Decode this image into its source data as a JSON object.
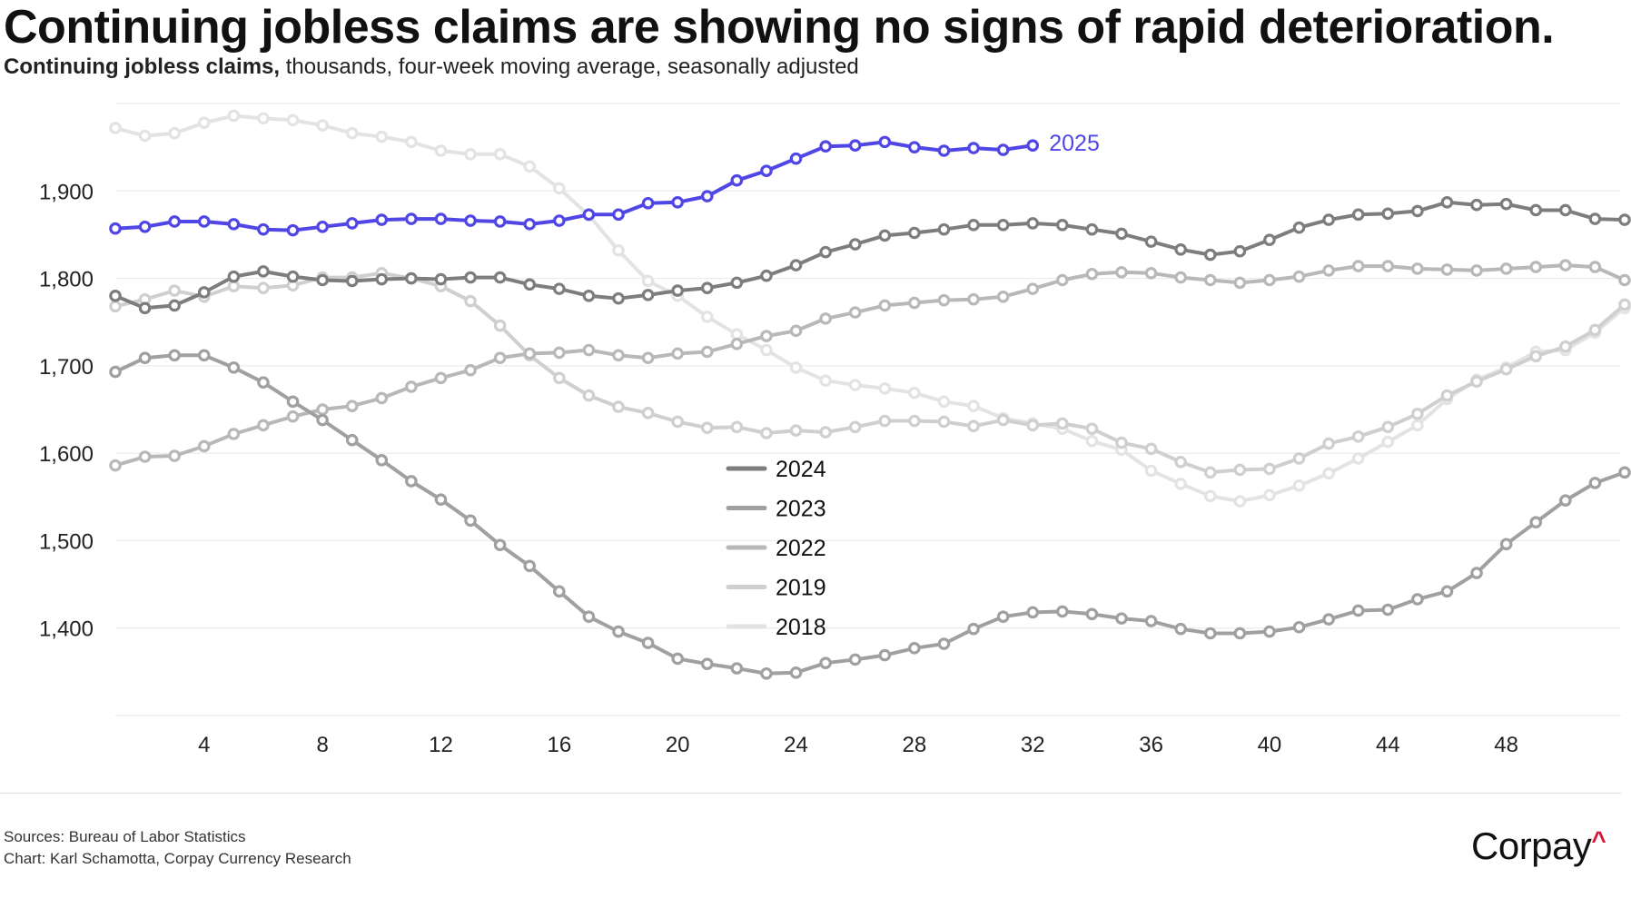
{
  "header": {
    "title": "Continuing jobless claims are showing no signs of rapid deterioration.",
    "subtitle_bold": "Continuing jobless claims,",
    "subtitle_rest": " thousands, four-week moving average, seasonally adjusted"
  },
  "footer": {
    "sources": "Sources: Bureau of Labor Statistics",
    "credit": "Chart: Karl Schamotta, Corpay Currency Research",
    "logo_text": "Corpay",
    "logo_mark": "^"
  },
  "colors": {
    "accent": "#5046e5",
    "brand_red": "#d6163a"
  },
  "chart_data": {
    "type": "line",
    "x_ticks": [
      4,
      8,
      12,
      16,
      20,
      24,
      28,
      32,
      36,
      40,
      44,
      48
    ],
    "y_ticks": [
      1400,
      1500,
      1600,
      1700,
      1800,
      1900
    ],
    "y_tick_labels": [
      "1,400",
      "1,500",
      "1,600",
      "1,700",
      "1,800",
      "1,900"
    ],
    "xlim": [
      1,
      52
    ],
    "ylim": [
      1300,
      2000
    ],
    "grid": true,
    "legend_position": "center",
    "legend": [
      "2024",
      "2023",
      "2022",
      "2019",
      "2018"
    ],
    "series": [
      {
        "name": "2018",
        "color": "#e3e3e3",
        "x_start": 1,
        "values": [
          1972,
          1963,
          1966,
          1978,
          1986,
          1983,
          1981,
          1975,
          1966,
          1962,
          1956,
          1946,
          1942,
          1942,
          1928,
          1903,
          1872,
          1832,
          1797,
          1780,
          1756,
          1736,
          1718,
          1698,
          1683,
          1678,
          1674,
          1669,
          1659,
          1654,
          1640,
          1634,
          1628,
          1614,
          1604,
          1580,
          1565,
          1551,
          1545,
          1552,
          1563,
          1577,
          1594,
          1613,
          1632,
          1662,
          1684,
          1698,
          1716,
          1718,
          1738,
          1766
        ]
      },
      {
        "name": "2019",
        "color": "#cfcfcf",
        "x_start": 1,
        "values": [
          1768,
          1776,
          1786,
          1779,
          1791,
          1789,
          1792,
          1801,
          1801,
          1806,
          1800,
          1791,
          1774,
          1746,
          1712,
          1686,
          1666,
          1653,
          1646,
          1636,
          1629,
          1630,
          1623,
          1626,
          1624,
          1630,
          1637,
          1637,
          1636,
          1631,
          1638,
          1632,
          1634,
          1628,
          1612,
          1605,
          1590,
          1578,
          1581,
          1582,
          1594,
          1611,
          1619,
          1630,
          1645,
          1666,
          1682,
          1696,
          1711,
          1722,
          1741,
          1770
        ]
      },
      {
        "name": "2022",
        "color": "#b8b8b8",
        "x_start": 1,
        "values": [
          1586,
          1596,
          1597,
          1608,
          1622,
          1632,
          1642,
          1650,
          1654,
          1663,
          1676,
          1686,
          1695,
          1709,
          1714,
          1715,
          1718,
          1712,
          1709,
          1714,
          1716,
          1725,
          1734,
          1740,
          1754,
          1761,
          1769,
          1772,
          1775,
          1776,
          1779,
          1788,
          1798,
          1805,
          1807,
          1806,
          1801,
          1798,
          1795,
          1798,
          1802,
          1809,
          1814,
          1814,
          1811,
          1810,
          1809,
          1811,
          1813,
          1815,
          1813,
          1798
        ]
      },
      {
        "name": "2023",
        "color": "#a0a0a0",
        "x_start": 1,
        "values": [
          1693,
          1709,
          1712,
          1712,
          1698,
          1681,
          1659,
          1638,
          1615,
          1592,
          1568,
          1547,
          1523,
          1495,
          1471,
          1442,
          1413,
          1396,
          1383,
          1365,
          1359,
          1354,
          1348,
          1349,
          1360,
          1364,
          1369,
          1377,
          1382,
          1399,
          1413,
          1418,
          1419,
          1416,
          1411,
          1408,
          1399,
          1394,
          1394,
          1396,
          1401,
          1410,
          1420,
          1421,
          1433,
          1442,
          1463,
          1496,
          1521,
          1546,
          1566,
          1578
        ]
      },
      {
        "name": "2024",
        "color": "#7d7d7d",
        "x_start": 1,
        "values": [
          1780,
          1766,
          1769,
          1784,
          1802,
          1808,
          1802,
          1798,
          1797,
          1799,
          1800,
          1799,
          1801,
          1801,
          1793,
          1788,
          1780,
          1777,
          1781,
          1786,
          1789,
          1795,
          1803,
          1815,
          1830,
          1839,
          1849,
          1852,
          1856,
          1861,
          1861,
          1863,
          1861,
          1856,
          1851,
          1842,
          1833,
          1827,
          1831,
          1844,
          1858,
          1867,
          1873,
          1874,
          1877,
          1887,
          1884,
          1885,
          1878,
          1878,
          1868,
          1867
        ]
      },
      {
        "name": "2025",
        "color": "#5046e5",
        "x_start": 1,
        "values": [
          1857,
          1859,
          1865,
          1865,
          1862,
          1856,
          1855,
          1859,
          1863,
          1867,
          1868,
          1868,
          1866,
          1865,
          1862,
          1866,
          1873,
          1873,
          1886,
          1887,
          1894,
          1912,
          1923,
          1937,
          1951,
          1952,
          1956,
          1950,
          1946,
          1949,
          1947,
          1952
        ]
      }
    ]
  }
}
